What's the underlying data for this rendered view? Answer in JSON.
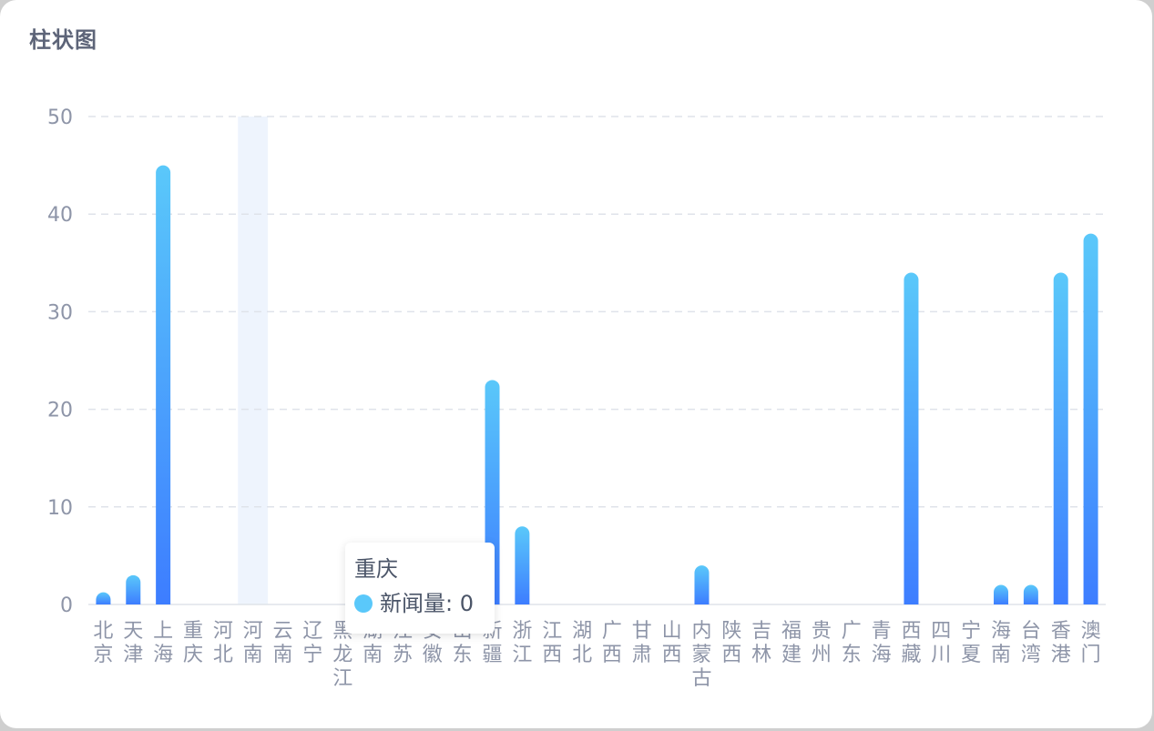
{
  "panel": {
    "title": "柱状图"
  },
  "tooltip": {
    "title": "重庆",
    "series_label": "新闻量",
    "value_text": "0"
  },
  "colors": {
    "bar_top": "#5ac8fa",
    "bar_bottom": "#3d7dff",
    "axis_text": "#8e95a8",
    "grid": "#dfe3ea",
    "highlight": "#eef4fd"
  },
  "chart_data": {
    "type": "bar",
    "categories": [
      "北京",
      "天津",
      "上海",
      "重庆",
      "河北",
      "河南",
      "云南",
      "辽宁",
      "黑龙江",
      "湖南",
      "江苏",
      "安徽",
      "山东",
      "新疆",
      "浙江",
      "江西",
      "湖北",
      "广西",
      "甘肃",
      "山西",
      "内蒙古",
      "陕西",
      "吉林",
      "福建",
      "贵州",
      "广东",
      "青海",
      "西藏",
      "四川",
      "宁夏",
      "海南",
      "台湾",
      "香港",
      "澳门"
    ],
    "series": [
      {
        "name": "新闻量",
        "values": [
          1,
          3,
          45,
          0,
          0,
          0,
          0,
          0,
          0,
          2,
          0,
          0,
          0,
          23,
          8,
          0,
          0,
          0,
          0,
          0,
          4,
          0,
          0,
          0,
          0,
          0,
          0,
          34,
          0,
          0,
          2,
          2,
          34,
          38
        ]
      }
    ],
    "ylim": [
      0,
      50
    ],
    "yticks": [
      0,
      10,
      20,
      30,
      40,
      50
    ],
    "grid": true,
    "highlighted_category": "河南",
    "legend": "none"
  }
}
